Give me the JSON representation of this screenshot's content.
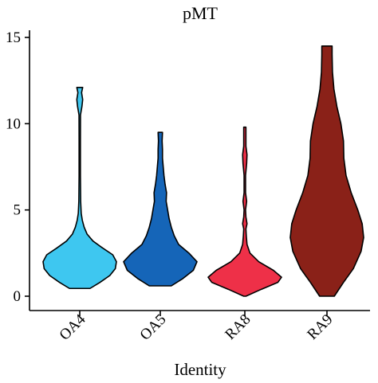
{
  "chart_data": {
    "type": "violin",
    "title": "pMT",
    "xlabel": "Identity",
    "ylabel": "",
    "ylim": [
      0,
      15
    ],
    "yticks": [
      0,
      5,
      10,
      15
    ],
    "grid": false,
    "legend": "none",
    "categories": [
      "OA4",
      "OA5",
      "RA8",
      "RA9"
    ],
    "series": [
      {
        "category": "OA4",
        "color": "#3ec7f0",
        "min": 0.45,
        "max": 12.1,
        "density": [
          [
            0.45,
            0.28
          ],
          [
            0.8,
            0.55
          ],
          [
            1.2,
            0.82
          ],
          [
            1.6,
            0.97
          ],
          [
            2.0,
            1.0
          ],
          [
            2.4,
            0.9
          ],
          [
            2.8,
            0.62
          ],
          [
            3.2,
            0.36
          ],
          [
            3.6,
            0.2
          ],
          [
            4.0,
            0.12
          ],
          [
            4.4,
            0.07
          ],
          [
            4.8,
            0.04
          ],
          [
            5.5,
            0.025
          ],
          [
            7.0,
            0.018
          ],
          [
            9.0,
            0.018
          ],
          [
            10.5,
            0.02
          ],
          [
            11.0,
            0.06
          ],
          [
            11.4,
            0.08
          ],
          [
            11.8,
            0.05
          ],
          [
            12.1,
            0.08
          ]
        ]
      },
      {
        "category": "OA5",
        "color": "#1565b8",
        "min": 0.6,
        "max": 9.5,
        "density": [
          [
            0.6,
            0.3
          ],
          [
            1.0,
            0.6
          ],
          [
            1.5,
            0.9
          ],
          [
            2.0,
            1.0
          ],
          [
            2.5,
            0.78
          ],
          [
            3.0,
            0.5
          ],
          [
            3.5,
            0.38
          ],
          [
            4.0,
            0.3
          ],
          [
            4.5,
            0.24
          ],
          [
            5.0,
            0.2
          ],
          [
            5.5,
            0.16
          ],
          [
            6.0,
            0.17
          ],
          [
            6.5,
            0.13
          ],
          [
            7.0,
            0.1
          ],
          [
            7.5,
            0.08
          ],
          [
            8.0,
            0.06
          ],
          [
            8.5,
            0.06
          ],
          [
            9.0,
            0.05
          ],
          [
            9.5,
            0.06
          ]
        ]
      },
      {
        "category": "RA8",
        "color": "#ee3048",
        "min": 0.0,
        "max": 9.8,
        "density": [
          [
            0.0,
            0.03
          ],
          [
            0.4,
            0.45
          ],
          [
            0.8,
            0.9
          ],
          [
            1.1,
            1.0
          ],
          [
            1.5,
            0.78
          ],
          [
            2.0,
            0.38
          ],
          [
            2.5,
            0.14
          ],
          [
            3.0,
            0.06
          ],
          [
            3.5,
            0.04
          ],
          [
            3.9,
            0.03
          ],
          [
            4.2,
            0.06
          ],
          [
            4.6,
            0.03
          ],
          [
            5.0,
            0.02
          ],
          [
            5.5,
            0.05
          ],
          [
            6.0,
            0.02
          ],
          [
            7.0,
            0.02
          ],
          [
            7.7,
            0.05
          ],
          [
            8.2,
            0.06
          ],
          [
            8.7,
            0.03
          ],
          [
            9.8,
            0.03
          ]
        ]
      },
      {
        "category": "RA9",
        "color": "#8a2118",
        "min": 0.0,
        "max": 14.5,
        "density": [
          [
            0.0,
            0.2
          ],
          [
            0.8,
            0.45
          ],
          [
            1.6,
            0.72
          ],
          [
            2.6,
            0.93
          ],
          [
            3.4,
            1.0
          ],
          [
            4.2,
            0.96
          ],
          [
            5.0,
            0.84
          ],
          [
            6.0,
            0.66
          ],
          [
            7.0,
            0.52
          ],
          [
            8.0,
            0.46
          ],
          [
            9.0,
            0.45
          ],
          [
            10.0,
            0.38
          ],
          [
            11.0,
            0.27
          ],
          [
            12.0,
            0.19
          ],
          [
            13.0,
            0.15
          ],
          [
            14.0,
            0.14
          ],
          [
            14.5,
            0.14
          ]
        ]
      }
    ]
  }
}
